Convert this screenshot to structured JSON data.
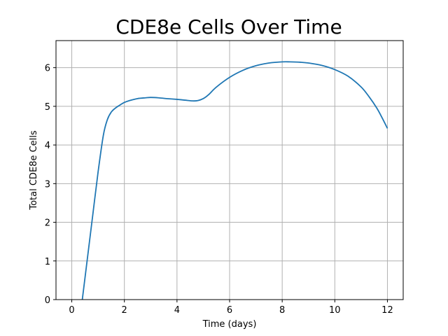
{
  "chart_data": {
    "type": "line",
    "title": "CDE8e Cells Over Time",
    "xlabel": "Time (days)",
    "ylabel": "Total CDE8e Cells",
    "xlim": [
      -0.6,
      12.6
    ],
    "ylim": [
      0,
      6.7
    ],
    "grid": true,
    "x_ticks": [
      0,
      2,
      4,
      6,
      8,
      10,
      12
    ],
    "y_ticks": [
      0,
      1,
      2,
      3,
      4,
      5,
      6
    ],
    "series": [
      {
        "name": "CDE8e",
        "color": "#1f77b4",
        "x": [
          0.4,
          0.6,
          0.8,
          1.0,
          1.2,
          1.35,
          1.5,
          1.65,
          1.8,
          2.0,
          2.2,
          2.5,
          2.8,
          3.0,
          3.3,
          3.6,
          4.0,
          4.3,
          4.6,
          4.8,
          5.0,
          5.2,
          5.5,
          6.0,
          6.5,
          7.0,
          7.5,
          8.0,
          8.3,
          8.7,
          9.0,
          9.5,
          10.0,
          10.5,
          11.0,
          11.3,
          11.6,
          11.8,
          12.0
        ],
        "y": [
          0.0,
          1.1,
          2.2,
          3.3,
          4.25,
          4.65,
          4.85,
          4.95,
          5.02,
          5.1,
          5.15,
          5.2,
          5.22,
          5.23,
          5.22,
          5.2,
          5.18,
          5.16,
          5.14,
          5.15,
          5.2,
          5.3,
          5.5,
          5.75,
          5.93,
          6.05,
          6.12,
          6.15,
          6.15,
          6.14,
          6.12,
          6.06,
          5.95,
          5.78,
          5.5,
          5.25,
          4.95,
          4.7,
          4.43
        ]
      }
    ]
  }
}
